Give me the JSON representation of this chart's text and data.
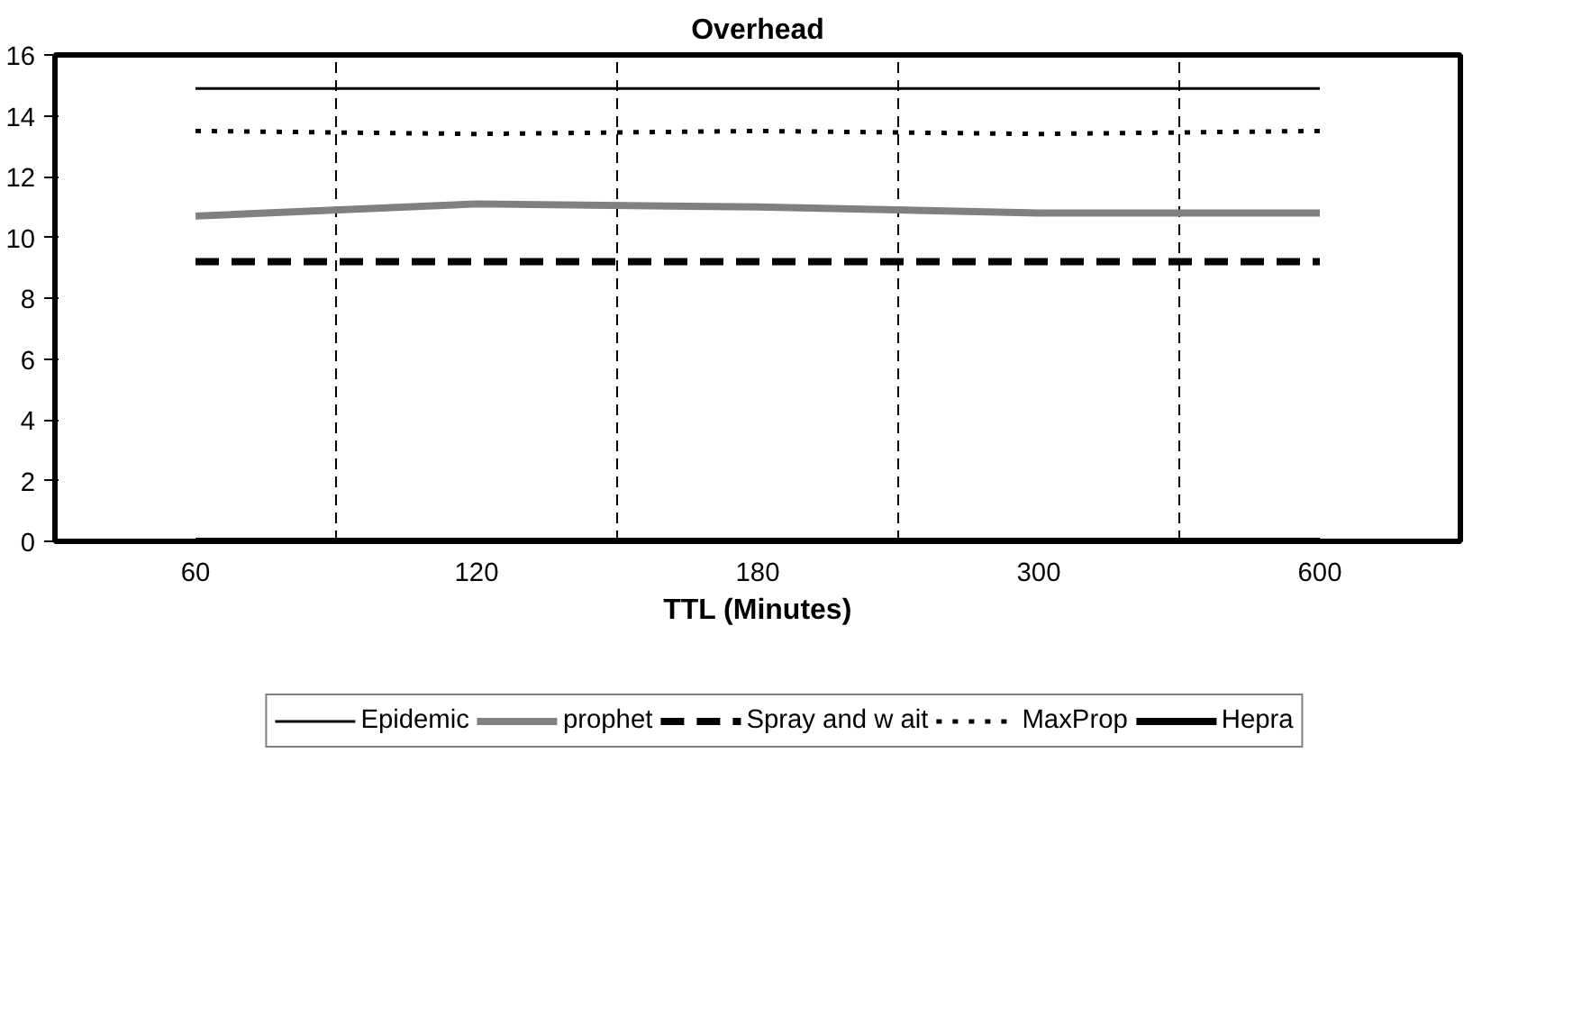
{
  "chart_data": {
    "type": "line",
    "title": "Overhead",
    "xlabel": "TTL (Minutes)",
    "categories": [
      "60",
      "120",
      "180",
      "300",
      "600"
    ],
    "series": [
      {
        "name": "Epidemic",
        "color": "#000000",
        "values": [
          14.9,
          14.9,
          14.9,
          14.9,
          14.9
        ],
        "line_style": "solid"
      },
      {
        "name": "prophet",
        "color": "#808080",
        "values": [
          10.7,
          11.1,
          11.0,
          10.8,
          10.8
        ],
        "line_style": "solid"
      },
      {
        "name": "Spray and w ait",
        "color": "#000000",
        "values": [
          9.2,
          9.2,
          9.2,
          9.2,
          9.2
        ],
        "line_style": "dashed"
      },
      {
        "name": "MaxProp",
        "color": "#000000",
        "values": [
          13.5,
          13.4,
          13.5,
          13.4,
          13.5
        ],
        "line_style": "dotted"
      },
      {
        "name": "Hepra",
        "color": "#000000",
        "values": [
          0,
          0,
          0,
          0,
          0
        ],
        "line_style": "solid"
      }
    ],
    "ylim": [
      0,
      16
    ],
    "yticks": [
      0,
      2,
      4,
      6,
      8,
      10,
      12,
      14,
      16
    ],
    "grid": "x",
    "legend": "bottom",
    "marker": "none"
  }
}
